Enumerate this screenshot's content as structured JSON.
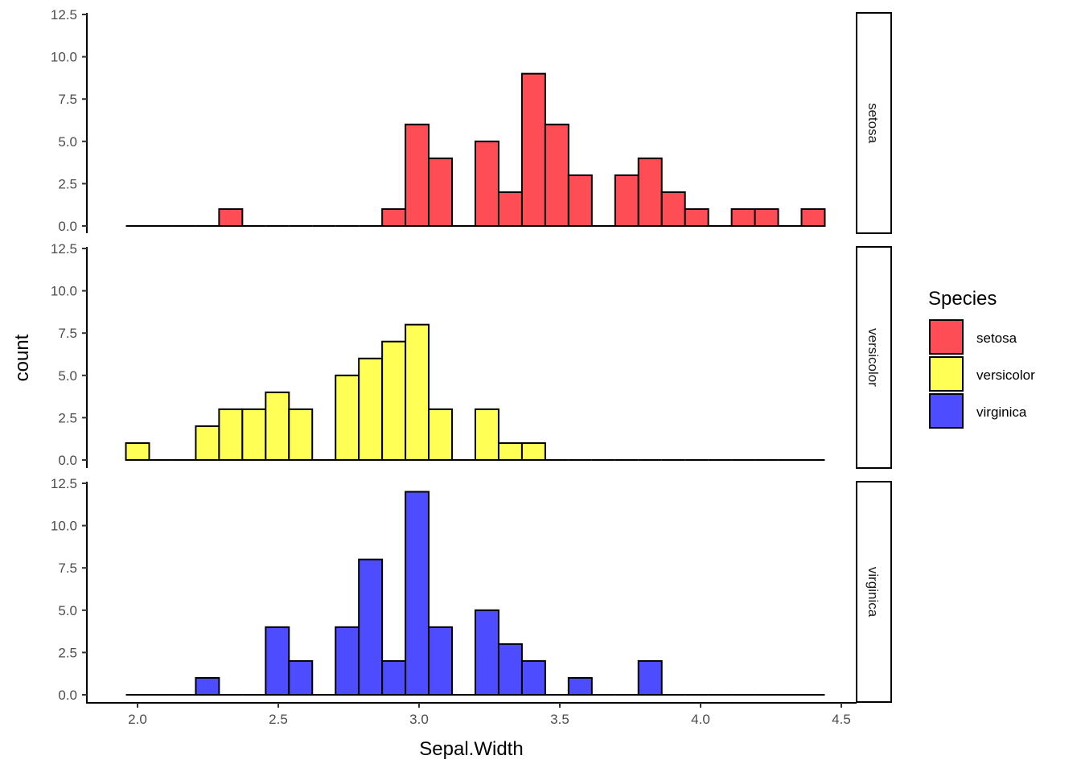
{
  "chart_data": {
    "type": "bar",
    "subtype": "faceted-histogram",
    "title": "",
    "xlabel": "Sepal.Width",
    "ylabel": "count",
    "xlim": [
      1.9,
      4.5
    ],
    "ylim": [
      0,
      12.5
    ],
    "x_ticks": [
      2.0,
      2.5,
      3.0,
      3.5,
      4.0,
      4.5
    ],
    "x_tick_labels": [
      "2.0",
      "2.5",
      "3.0",
      "3.5",
      "4.0",
      "4.5"
    ],
    "y_ticks": [
      0,
      2.5,
      5,
      7.5,
      10,
      12.5
    ],
    "y_tick_labels": [
      "0.0",
      "2.5",
      "5.0",
      "7.5",
      "10.0",
      "12.5"
    ],
    "grid": false,
    "bins": 30,
    "bin_range": [
      2.0,
      4.4
    ],
    "legend": {
      "title": "Species",
      "position": "right",
      "entries": [
        {
          "label": "setosa",
          "color": "#ff4d55"
        },
        {
          "label": "versicolor",
          "color": "#ffff55"
        },
        {
          "label": "virginica",
          "color": "#4d4dff"
        }
      ]
    },
    "series": [
      {
        "name": "setosa",
        "color": "#ff4d55",
        "values": [
          0,
          0,
          0,
          0,
          1,
          0,
          0,
          0,
          0,
          0,
          0,
          1,
          6,
          4,
          0,
          5,
          2,
          9,
          6,
          3,
          0,
          3,
          4,
          2,
          1,
          0,
          1,
          1,
          0,
          1
        ]
      },
      {
        "name": "versicolor",
        "color": "#ffff55",
        "values": [
          1,
          0,
          0,
          2,
          3,
          3,
          4,
          3,
          0,
          5,
          6,
          7,
          8,
          3,
          0,
          3,
          1,
          1,
          0,
          0,
          0,
          0,
          0,
          0,
          0,
          0,
          0,
          0,
          0,
          0
        ]
      },
      {
        "name": "virginica",
        "color": "#4d4dff",
        "values": [
          0,
          0,
          0,
          1,
          0,
          0,
          4,
          2,
          0,
          4,
          8,
          2,
          12,
          4,
          0,
          5,
          3,
          2,
          0,
          1,
          0,
          0,
          2,
          0,
          0,
          0,
          0,
          0,
          0,
          0
        ]
      }
    ]
  }
}
